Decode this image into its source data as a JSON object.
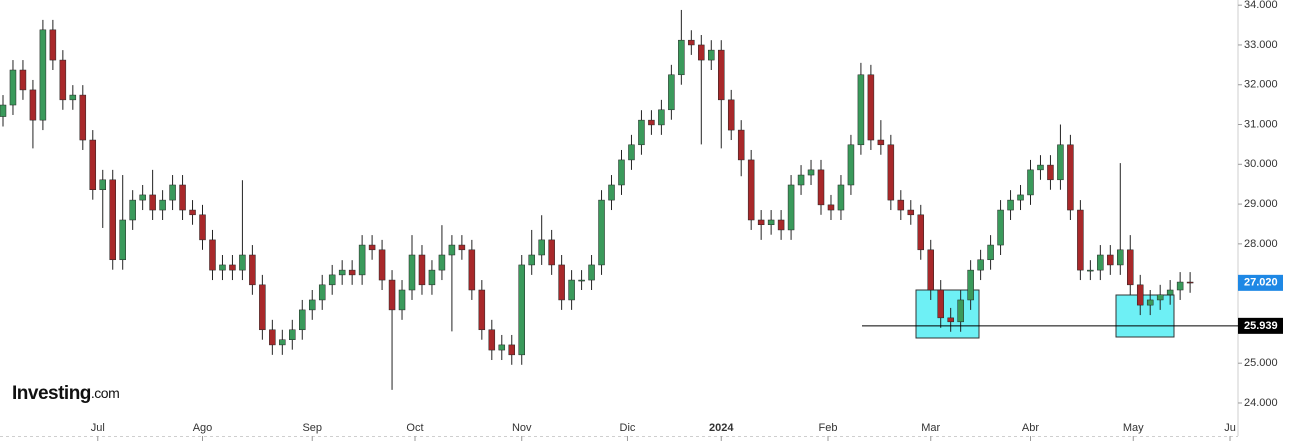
{
  "chart_data": {
    "type": "candlestick",
    "up_color": "#3a9a5b",
    "down_color": "#a8282a",
    "xlim": [
      -0.3,
      123.5
    ],
    "ylim": [
      23.17,
      34.13
    ],
    "yticks": [
      {
        "value": 24,
        "label": "24.000"
      },
      {
        "value": 25,
        "label": "25.000"
      },
      {
        "value": 26,
        "label": "26.000"
      },
      {
        "value": 27,
        "label": "27.000"
      },
      {
        "value": 28,
        "label": "28.000"
      },
      {
        "value": 29,
        "label": "29.000"
      },
      {
        "value": 30,
        "label": "30.000"
      },
      {
        "value": 31,
        "label": "31.000"
      },
      {
        "value": 32,
        "label": "32.000"
      },
      {
        "value": 33,
        "label": "33.000"
      },
      {
        "value": 34,
        "label": "34.000"
      }
    ],
    "xticks": [
      {
        "value": 9.5,
        "label": "Jul"
      },
      {
        "value": 20,
        "label": "Ago"
      },
      {
        "value": 31,
        "label": "Sep"
      },
      {
        "value": 41.3,
        "label": "Oct"
      },
      {
        "value": 52,
        "label": "Nov"
      },
      {
        "value": 62.6,
        "label": "Dic"
      },
      {
        "value": 72,
        "label": "2024",
        "bold": true
      },
      {
        "value": 82.7,
        "label": "Feb"
      },
      {
        "value": 93,
        "label": "Mar"
      },
      {
        "value": 103,
        "label": "Abr"
      },
      {
        "value": 113.3,
        "label": "May"
      },
      {
        "value": 123,
        "label": "Ju"
      }
    ],
    "price_labels": [
      {
        "value": 27.02,
        "label": "27.020",
        "color": "#1e88e5"
      },
      {
        "value": 25.939,
        "label": "25.939",
        "color": "#000000"
      }
    ],
    "brand": [
      "Investing",
      ".com"
    ],
    "ohlc": [
      [
        31.2,
        31.74,
        30.95,
        31.49
      ],
      [
        31.49,
        32.62,
        31.24,
        32.37
      ],
      [
        32.37,
        32.62,
        31.62,
        31.87
      ],
      [
        31.87,
        32.12,
        30.4,
        31.11
      ],
      [
        31.11,
        33.63,
        30.86,
        33.38
      ],
      [
        33.38,
        33.63,
        32.37,
        32.62
      ],
      [
        32.62,
        32.87,
        31.37,
        31.62
      ],
      [
        31.62,
        31.99,
        31.37,
        31.74
      ],
      [
        31.74,
        31.99,
        30.36,
        30.61
      ],
      [
        30.61,
        30.86,
        29.11,
        29.36
      ],
      [
        29.36,
        29.86,
        28.4,
        29.61
      ],
      [
        29.61,
        29.86,
        27.35,
        27.6
      ],
      [
        27.6,
        29.73,
        27.35,
        28.6
      ],
      [
        28.6,
        29.35,
        28.35,
        29.1
      ],
      [
        29.1,
        29.48,
        28.85,
        29.23
      ],
      [
        29.23,
        29.86,
        28.6,
        28.85
      ],
      [
        28.85,
        29.35,
        28.6,
        29.1
      ],
      [
        29.1,
        29.73,
        28.85,
        29.48
      ],
      [
        29.48,
        29.73,
        28.6,
        28.85
      ],
      [
        28.85,
        29.1,
        28.48,
        28.73
      ],
      [
        28.73,
        28.98,
        27.85,
        28.1
      ],
      [
        28.1,
        28.35,
        27.09,
        27.34
      ],
      [
        27.34,
        27.72,
        27.09,
        27.47
      ],
      [
        27.47,
        27.72,
        27.09,
        27.34
      ],
      [
        27.34,
        29.6,
        27.09,
        27.72
      ],
      [
        27.72,
        27.97,
        26.72,
        26.97
      ],
      [
        26.97,
        27.22,
        25.59,
        25.84
      ],
      [
        25.84,
        26.09,
        25.21,
        25.46
      ],
      [
        25.46,
        25.84,
        25.21,
        25.59
      ],
      [
        25.59,
        26.09,
        25.34,
        25.84
      ],
      [
        25.84,
        26.59,
        25.59,
        26.34
      ],
      [
        26.34,
        26.84,
        26.09,
        26.59
      ],
      [
        26.59,
        27.22,
        26.34,
        26.97
      ],
      [
        26.97,
        27.47,
        26.72,
        27.22
      ],
      [
        27.22,
        27.59,
        26.97,
        27.34
      ],
      [
        27.34,
        27.59,
        26.97,
        27.22
      ],
      [
        27.22,
        28.22,
        26.97,
        27.97
      ],
      [
        27.97,
        28.22,
        27.6,
        27.85
      ],
      [
        27.85,
        28.1,
        26.84,
        27.09
      ],
      [
        27.09,
        27.34,
        24.33,
        26.34
      ],
      [
        26.34,
        27.09,
        26.09,
        26.84
      ],
      [
        26.84,
        28.22,
        26.59,
        27.72
      ],
      [
        27.72,
        27.97,
        26.72,
        26.97
      ],
      [
        26.97,
        27.59,
        26.72,
        27.34
      ],
      [
        27.34,
        28.47,
        27.09,
        27.72
      ],
      [
        27.72,
        28.22,
        25.8,
        27.97
      ],
      [
        27.97,
        28.22,
        27.6,
        27.85
      ],
      [
        27.85,
        28.1,
        26.59,
        26.84
      ],
      [
        26.84,
        27.09,
        25.59,
        25.84
      ],
      [
        25.84,
        26.09,
        25.08,
        25.33
      ],
      [
        25.33,
        25.71,
        25.08,
        25.46
      ],
      [
        25.46,
        25.71,
        24.96,
        25.21
      ],
      [
        25.21,
        27.72,
        24.96,
        27.47
      ],
      [
        27.47,
        28.35,
        27.22,
        27.72
      ],
      [
        27.72,
        28.72,
        27.47,
        28.1
      ],
      [
        28.1,
        28.35,
        27.22,
        27.47
      ],
      [
        27.47,
        27.72,
        26.34,
        26.59
      ],
      [
        26.59,
        27.34,
        26.34,
        27.09
      ],
      [
        27.09,
        27.34,
        26.84,
        27.09
      ],
      [
        27.09,
        27.72,
        26.84,
        27.47
      ],
      [
        27.47,
        29.35,
        27.22,
        29.1
      ],
      [
        29.1,
        29.73,
        28.85,
        29.48
      ],
      [
        29.48,
        30.36,
        29.23,
        30.11
      ],
      [
        30.11,
        30.74,
        29.86,
        30.49
      ],
      [
        30.49,
        31.36,
        30.24,
        31.11
      ],
      [
        31.11,
        31.36,
        30.74,
        30.99
      ],
      [
        30.99,
        31.62,
        30.74,
        31.37
      ],
      [
        31.37,
        32.5,
        31.12,
        32.25
      ],
      [
        32.25,
        33.88,
        32.0,
        33.12
      ],
      [
        33.12,
        33.37,
        32.75,
        33.0
      ],
      [
        33.0,
        33.25,
        30.5,
        32.62
      ],
      [
        32.62,
        33.12,
        32.37,
        32.87
      ],
      [
        32.87,
        33.12,
        30.4,
        31.62
      ],
      [
        31.62,
        31.87,
        30.61,
        30.86
      ],
      [
        30.86,
        31.11,
        29.7,
        30.11
      ],
      [
        30.11,
        30.36,
        28.35,
        28.6
      ],
      [
        28.6,
        28.85,
        28.1,
        28.48
      ],
      [
        28.48,
        28.85,
        28.23,
        28.6
      ],
      [
        28.6,
        28.85,
        28.1,
        28.35
      ],
      [
        28.35,
        29.73,
        28.1,
        29.48
      ],
      [
        29.48,
        29.98,
        29.23,
        29.73
      ],
      [
        29.73,
        30.11,
        29.48,
        29.86
      ],
      [
        29.86,
        30.11,
        28.73,
        28.98
      ],
      [
        28.98,
        29.23,
        28.6,
        28.85
      ],
      [
        28.85,
        29.73,
        28.6,
        29.48
      ],
      [
        29.48,
        30.74,
        29.23,
        30.49
      ],
      [
        30.49,
        32.55,
        30.24,
        32.25
      ],
      [
        32.25,
        32.5,
        30.36,
        30.61
      ],
      [
        30.61,
        31.11,
        30.24,
        30.49
      ],
      [
        30.49,
        30.74,
        28.85,
        29.1
      ],
      [
        29.1,
        29.35,
        28.6,
        28.85
      ],
      [
        28.85,
        29.1,
        28.48,
        28.73
      ],
      [
        28.73,
        28.98,
        27.6,
        27.85
      ],
      [
        27.85,
        28.1,
        26.59,
        26.84
      ],
      [
        26.84,
        27.09,
        25.89,
        26.14
      ],
      [
        26.14,
        26.39,
        25.79,
        26.04
      ],
      [
        26.04,
        26.84,
        25.79,
        26.59
      ],
      [
        26.59,
        27.59,
        26.34,
        27.34
      ],
      [
        27.34,
        27.85,
        27.09,
        27.6
      ],
      [
        27.6,
        28.22,
        27.35,
        27.97
      ],
      [
        27.97,
        29.1,
        27.72,
        28.85
      ],
      [
        28.85,
        29.35,
        28.6,
        29.1
      ],
      [
        29.1,
        29.48,
        28.85,
        29.23
      ],
      [
        29.23,
        30.11,
        28.98,
        29.86
      ],
      [
        29.86,
        30.23,
        29.61,
        29.98
      ],
      [
        29.98,
        30.23,
        29.36,
        29.61
      ],
      [
        29.61,
        31.0,
        29.36,
        30.49
      ],
      [
        30.49,
        30.74,
        28.6,
        28.85
      ],
      [
        28.85,
        29.1,
        27.09,
        27.34
      ],
      [
        27.34,
        27.59,
        27.09,
        27.34
      ],
      [
        27.34,
        27.97,
        27.09,
        27.72
      ],
      [
        27.72,
        27.97,
        27.22,
        27.47
      ],
      [
        27.47,
        30.03,
        27.22,
        27.85
      ],
      [
        27.85,
        28.22,
        26.72,
        26.97
      ],
      [
        26.97,
        27.22,
        26.21,
        26.46
      ],
      [
        26.46,
        26.84,
        26.21,
        26.59
      ],
      [
        26.59,
        26.97,
        26.34,
        26.72
      ],
      [
        26.72,
        27.09,
        26.47,
        26.84
      ],
      [
        26.84,
        27.29,
        26.59,
        27.04
      ],
      [
        27.04,
        27.29,
        26.77,
        27.02
      ]
    ]
  }
}
